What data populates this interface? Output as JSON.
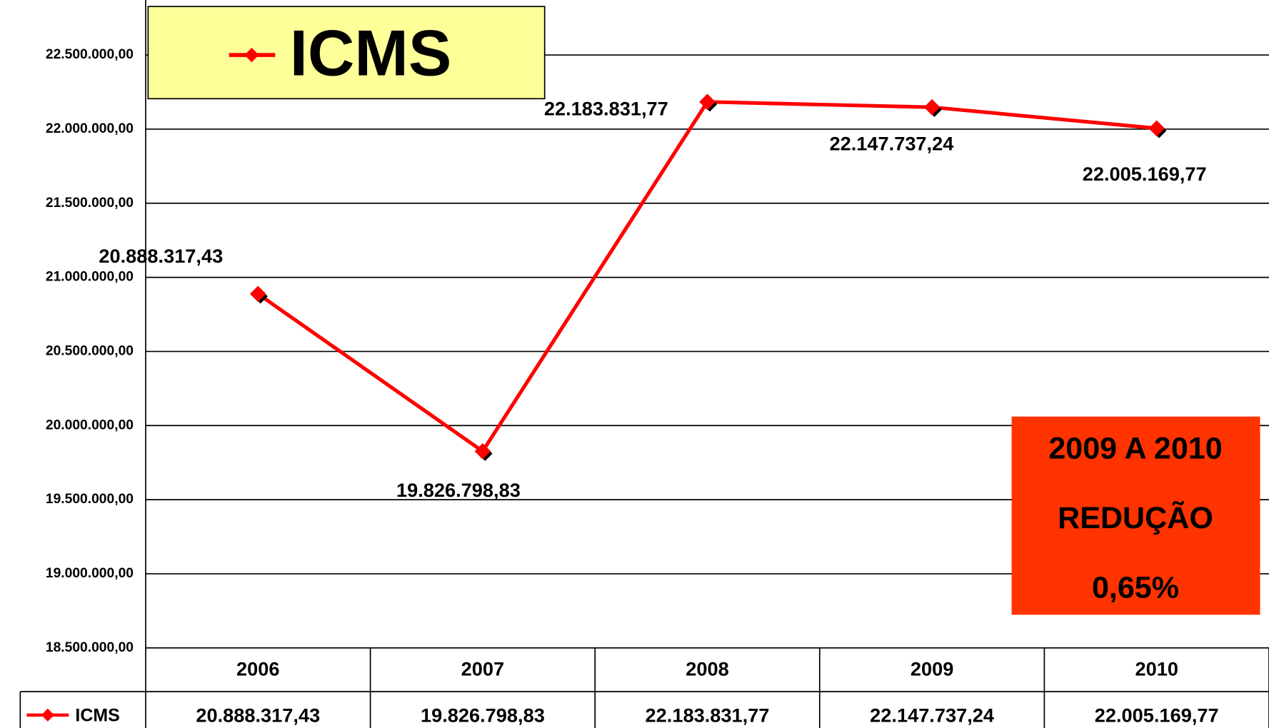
{
  "chart_data": {
    "type": "line",
    "categories": [
      "2006",
      "2007",
      "2008",
      "2009",
      "2010"
    ],
    "series": [
      {
        "name": "ICMS",
        "color": "#ff0000",
        "values": [
          20888317.43,
          19826798.83,
          22183831.77,
          22147737.24,
          22005169.77
        ],
        "value_labels": [
          "20.888.317,43",
          "19.826.798,83",
          "22.183.831,77",
          "22.147.737,24",
          "22.005.169,77"
        ]
      }
    ],
    "ylim": [
      18500000,
      22500000
    ],
    "yticks": [
      {
        "value": 18500000,
        "label": "18.500.000,00"
      },
      {
        "value": 19000000,
        "label": "19.000.000,00"
      },
      {
        "value": 19500000,
        "label": "19.500.000,00"
      },
      {
        "value": 20000000,
        "label": "20.000.000,00"
      },
      {
        "value": 20500000,
        "label": "20.500.000,00"
      },
      {
        "value": 21000000,
        "label": "21.000.000,00"
      },
      {
        "value": 21500000,
        "label": "21.500.000,00"
      },
      {
        "value": 22000000,
        "label": "22.000.000,00"
      },
      {
        "value": 22500000,
        "label": "22.500.000,00"
      }
    ],
    "grid": true,
    "legend": "top-left",
    "annotations": [
      "2009 A 2010",
      "REDUÇÃO",
      "0,65%"
    ],
    "annotation_color": "#ff3300"
  }
}
